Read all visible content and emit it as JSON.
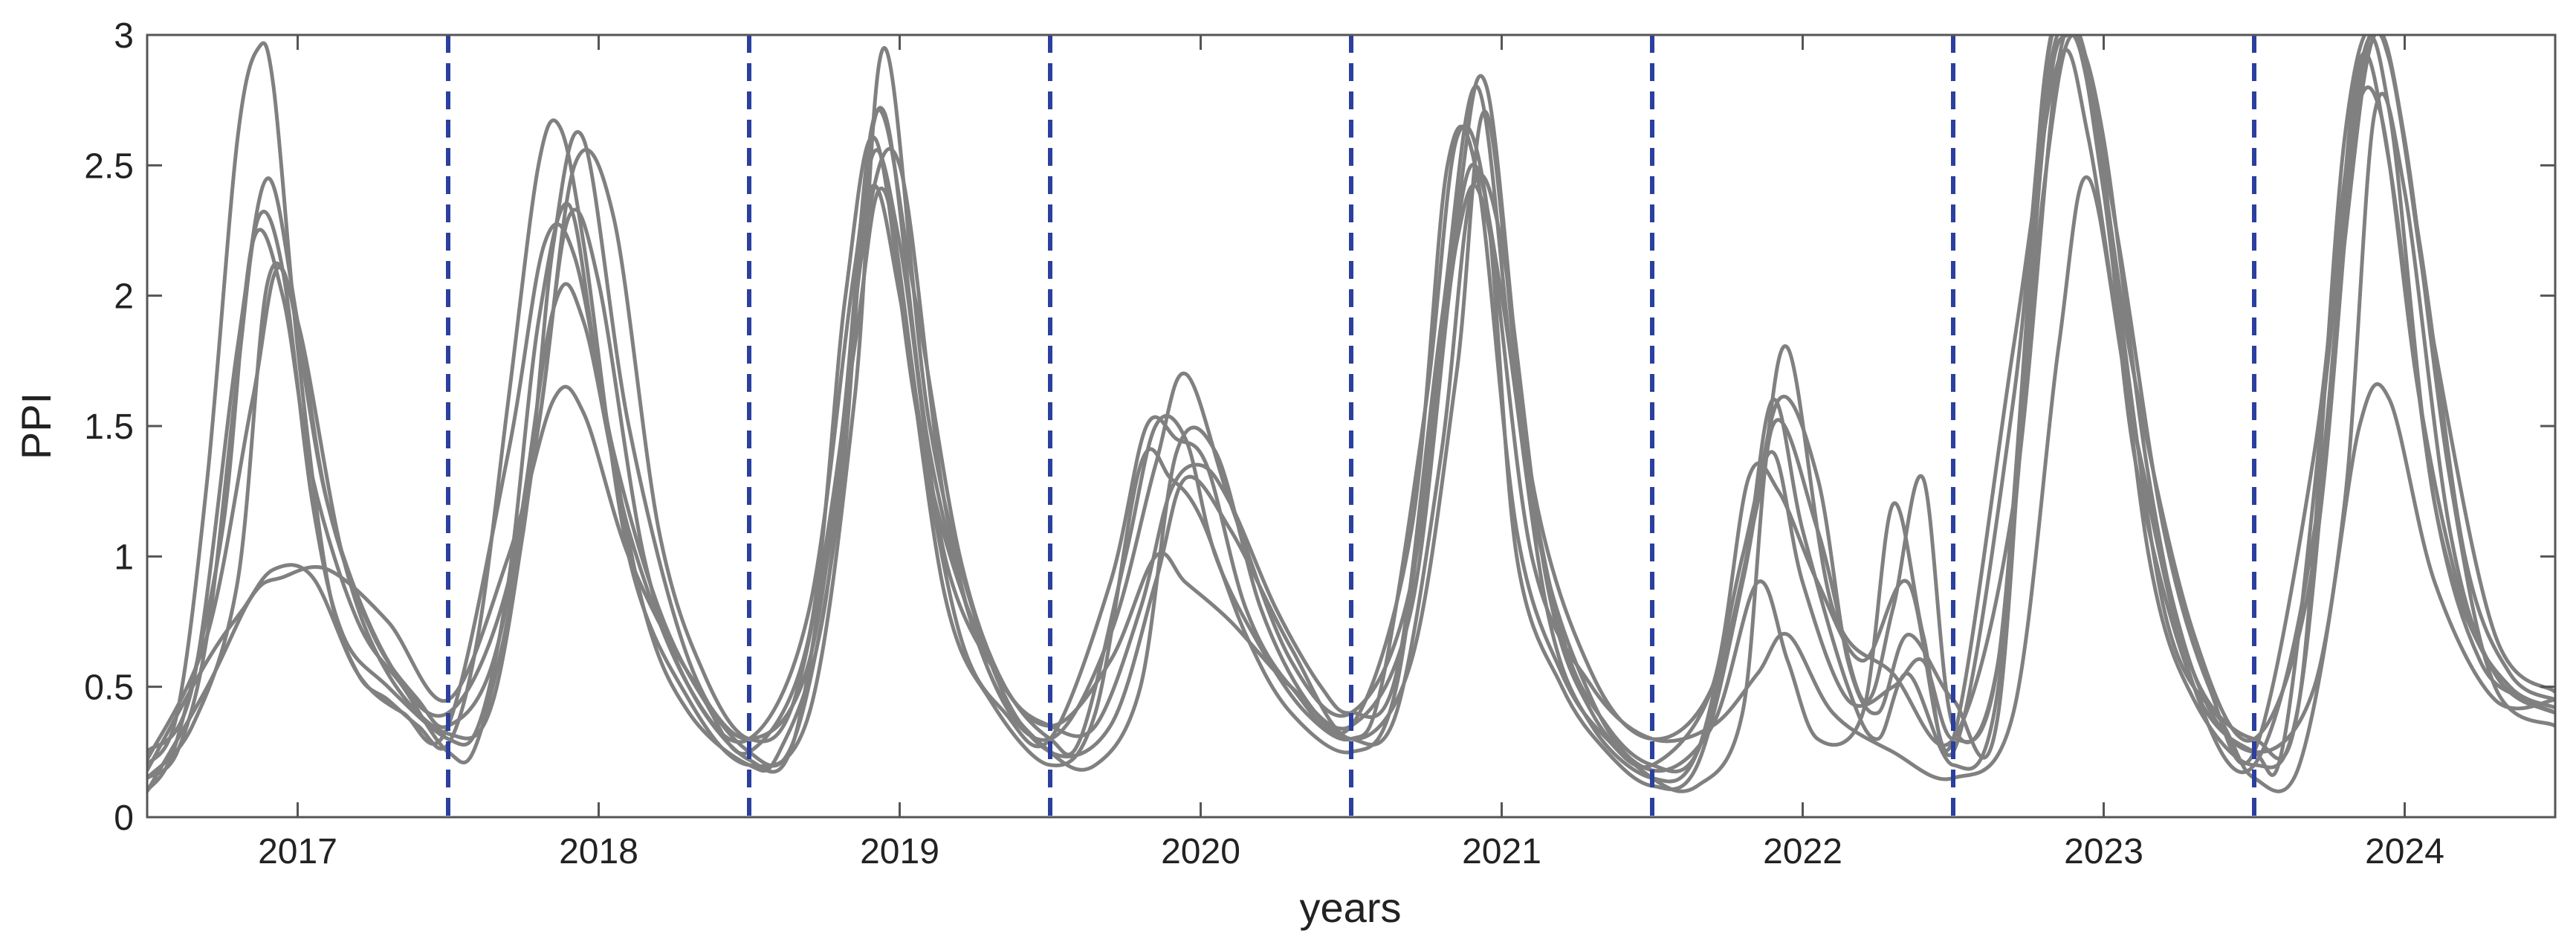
{
  "chart_data": {
    "type": "line",
    "xlabel": "years",
    "ylabel": "PPI",
    "xlim": [
      2016.5,
      2024.5
    ],
    "ylim": [
      0,
      3
    ],
    "x_ticks": [
      2017,
      2018,
      2019,
      2020,
      2021,
      2022,
      2023,
      2024
    ],
    "x_tick_labels": [
      "2017",
      "2018",
      "2019",
      "2020",
      "2021",
      "2022",
      "2023",
      "2024"
    ],
    "y_ticks": [
      0,
      0.5,
      1,
      1.5,
      2,
      2.5,
      3
    ],
    "y_tick_labels": [
      "0",
      "0.5",
      "1",
      "1.5",
      "2",
      "2.5",
      "3"
    ],
    "vertical_lines": [
      2017.5,
      2018.5,
      2019.5,
      2020.5,
      2021.5,
      2022.5,
      2023.5
    ],
    "grid": false,
    "colors": {
      "series": "#808080",
      "vertical_lines": "#2b3f9e",
      "axes": "#555555"
    },
    "series": [
      {
        "x": [
          2016.5,
          2016.6,
          2016.7,
          2016.8,
          2016.87,
          2016.92,
          2017.0,
          2017.1,
          2017.2,
          2017.3,
          2017.4,
          2017.5,
          2017.6,
          2017.7,
          2017.8,
          2017.87,
          2017.95,
          2018.1,
          2018.3,
          2018.5,
          2018.7,
          2018.85,
          2018.95,
          2019.1,
          2019.3,
          2019.5,
          2019.7,
          2019.85,
          2019.95,
          2020.1,
          2020.3,
          2020.5,
          2020.7,
          2020.85,
          2020.95,
          2021.1,
          2021.3,
          2021.5,
          2021.7,
          2021.85,
          2021.95,
          2022.05,
          2022.2,
          2022.3,
          2022.4,
          2022.5,
          2022.7,
          2022.85,
          2022.95,
          2023.1,
          2023.3,
          2023.5,
          2023.7,
          2023.85,
          2023.95,
          2024.1,
          2024.3,
          2024.5
        ],
        "y": [
          0.2,
          0.4,
          1.3,
          2.6,
          2.95,
          2.8,
          1.8,
          0.9,
          0.55,
          0.45,
          0.35,
          0.28,
          0.7,
          1.6,
          2.5,
          2.65,
          2.2,
          1.0,
          0.45,
          0.2,
          0.4,
          1.6,
          2.95,
          1.5,
          0.6,
          0.25,
          0.35,
          0.9,
          1.3,
          1.1,
          0.65,
          0.3,
          0.6,
          1.7,
          2.7,
          1.2,
          0.45,
          0.18,
          0.35,
          0.9,
          0.6,
          0.3,
          0.4,
          1.2,
          0.7,
          0.3,
          1.8,
          2.9,
          2.6,
          1.5,
          0.5,
          0.2,
          1.1,
          2.85,
          2.7,
          1.2,
          0.55,
          0.4
        ]
      },
      {
        "x": [
          2016.5,
          2016.6,
          2016.7,
          2016.8,
          2016.87,
          2016.95,
          2017.05,
          2017.15,
          2017.3,
          2017.5,
          2017.6,
          2017.7,
          2017.8,
          2017.9,
          2018.0,
          2018.15,
          2018.3,
          2018.5,
          2018.6,
          2018.75,
          2018.88,
          2019.0,
          2019.15,
          2019.3,
          2019.5,
          2019.65,
          2019.8,
          2019.92,
          2020.05,
          2020.2,
          2020.35,
          2020.5,
          2020.65,
          2020.8,
          2020.9,
          2021.0,
          2021.15,
          2021.3,
          2021.5,
          2021.65,
          2021.8,
          2021.9,
          2022.05,
          2022.2,
          2022.3,
          2022.4,
          2022.5,
          2022.65,
          2022.8,
          2022.9,
          2023.0,
          2023.2,
          2023.4,
          2023.5,
          2023.65,
          2023.8,
          2023.9,
          2024.0,
          2024.15,
          2024.3,
          2024.5
        ],
        "y": [
          0.15,
          0.25,
          0.7,
          1.7,
          2.3,
          2.1,
          1.2,
          0.7,
          0.5,
          0.3,
          0.35,
          0.9,
          1.9,
          2.35,
          1.7,
          0.8,
          0.4,
          0.2,
          0.25,
          0.8,
          2.2,
          2.5,
          1.2,
          0.55,
          0.25,
          0.2,
          0.5,
          1.4,
          1.4,
          0.8,
          0.45,
          0.3,
          0.4,
          1.4,
          2.4,
          2.2,
          0.9,
          0.4,
          0.15,
          0.12,
          0.4,
          1.5,
          1.1,
          0.45,
          0.8,
          1.3,
          0.35,
          0.6,
          2.4,
          3.0,
          2.4,
          0.8,
          0.35,
          0.15,
          0.2,
          1.2,
          2.7,
          2.4,
          1.1,
          0.55,
          0.4
        ]
      },
      {
        "x": [
          2016.5,
          2016.65,
          2016.8,
          2016.9,
          2017.0,
          2017.1,
          2017.25,
          2017.4,
          2017.5,
          2017.65,
          2017.8,
          2017.92,
          2018.05,
          2018.2,
          2018.35,
          2018.5,
          2018.65,
          2018.8,
          2018.92,
          2019.05,
          2019.2,
          2019.35,
          2019.5,
          2019.65,
          2019.8,
          2019.9,
          2020.0,
          2020.1,
          2020.25,
          2020.4,
          2020.5,
          2020.65,
          2020.8,
          2020.92,
          2021.05,
          2021.2,
          2021.35,
          2021.5,
          2021.65,
          2021.8,
          2021.92,
          2022.05,
          2022.15,
          2022.25,
          2022.35,
          2022.5,
          2022.65,
          2022.8,
          2022.9,
          2023.0,
          2023.15,
          2023.3,
          2023.5,
          2023.65,
          2023.8,
          2023.92,
          2024.05,
          2024.2,
          2024.35,
          2024.5
        ],
        "y": [
          0.25,
          0.5,
          1.8,
          2.45,
          1.9,
          1.2,
          0.7,
          0.45,
          0.35,
          0.6,
          1.5,
          2.5,
          2.3,
          1.1,
          0.55,
          0.3,
          0.45,
          1.4,
          2.7,
          2.0,
          1.0,
          0.5,
          0.35,
          0.35,
          0.8,
          1.25,
          1.35,
          1.2,
          0.8,
          0.5,
          0.4,
          0.55,
          1.9,
          2.8,
          1.6,
          0.7,
          0.35,
          0.2,
          0.25,
          0.9,
          1.6,
          1.3,
          0.6,
          0.4,
          0.7,
          0.45,
          0.4,
          2.8,
          3.0,
          2.6,
          1.3,
          0.55,
          0.3,
          0.45,
          2.6,
          3.0,
          2.2,
          1.0,
          0.55,
          0.45
        ]
      },
      {
        "x": [
          2016.5,
          2016.6,
          2016.75,
          2016.85,
          2016.95,
          2017.05,
          2017.2,
          2017.35,
          2017.5,
          2017.6,
          2017.75,
          2017.85,
          2017.95,
          2018.1,
          2018.3,
          2018.5,
          2018.65,
          2018.8,
          2018.9,
          2019.0,
          2019.15,
          2019.35,
          2019.5,
          2019.6,
          2019.75,
          2019.85,
          2019.95,
          2020.05,
          2020.2,
          2020.35,
          2020.5,
          2020.6,
          2020.75,
          2020.85,
          2020.95,
          2021.05,
          2021.2,
          2021.35,
          2021.5,
          2021.65,
          2021.8,
          2021.9,
          2022.0,
          2022.15,
          2022.25,
          2022.35,
          2022.5,
          2022.65,
          2022.8,
          2022.88,
          2022.98,
          2023.1,
          2023.3,
          2023.5,
          2023.6,
          2023.75,
          2023.85,
          2023.95,
          2024.1,
          2024.25,
          2024.4,
          2024.5
        ],
        "y": [
          0.1,
          0.3,
          1.1,
          2.2,
          2.0,
          1.3,
          0.75,
          0.5,
          0.25,
          0.3,
          1.1,
          2.2,
          2.6,
          1.5,
          0.6,
          0.25,
          0.3,
          1.2,
          2.5,
          2.2,
          1.0,
          0.5,
          0.3,
          0.3,
          1.0,
          1.5,
          1.45,
          1.0,
          0.65,
          0.4,
          0.3,
          0.5,
          1.6,
          2.6,
          2.35,
          1.0,
          0.5,
          0.25,
          0.12,
          0.2,
          0.9,
          1.6,
          1.1,
          0.5,
          0.3,
          0.55,
          0.2,
          0.5,
          2.6,
          3.0,
          2.7,
          1.4,
          0.5,
          0.25,
          0.3,
          1.8,
          2.9,
          2.5,
          1.2,
          0.6,
          0.45,
          0.4
        ]
      },
      {
        "x": [
          2016.5,
          2016.65,
          2016.8,
          2016.9,
          2017.0,
          2017.15,
          2017.3,
          2017.5,
          2017.65,
          2017.8,
          2017.9,
          2018.0,
          2018.15,
          2018.3,
          2018.5,
          2018.65,
          2018.8,
          2018.9,
          2019.0,
          2019.15,
          2019.3,
          2019.5,
          2019.65,
          2019.8,
          2019.9,
          2020.0,
          2020.15,
          2020.3,
          2020.5,
          2020.65,
          2020.8,
          2020.9,
          2021.0,
          2021.15,
          2021.3,
          2021.5,
          2021.65,
          2021.8,
          2021.9,
          2022.0,
          2022.15,
          2022.3,
          2022.4,
          2022.5,
          2022.65,
          2022.8,
          2022.9,
          2023.0,
          2023.15,
          2023.3,
          2023.5,
          2023.65,
          2023.8,
          2023.9,
          2024.0,
          2024.15,
          2024.3,
          2024.5
        ],
        "y": [
          0.15,
          0.35,
          0.9,
          2.05,
          1.9,
          1.0,
          0.55,
          0.32,
          0.45,
          1.5,
          2.3,
          2.05,
          1.0,
          0.5,
          0.22,
          0.3,
          1.4,
          2.4,
          2.0,
          0.85,
          0.45,
          0.2,
          0.4,
          1.35,
          1.3,
          1.15,
          0.7,
          0.4,
          0.25,
          0.5,
          1.8,
          2.5,
          2.0,
          0.8,
          0.35,
          0.15,
          0.25,
          1.0,
          1.4,
          0.9,
          0.45,
          0.5,
          0.6,
          0.3,
          0.6,
          2.7,
          3.0,
          2.4,
          1.0,
          0.45,
          0.2,
          0.45,
          2.2,
          3.0,
          2.6,
          1.3,
          0.5,
          0.35
        ]
      },
      {
        "x": [
          2016.5,
          2016.7,
          2016.85,
          2016.95,
          2017.1,
          2017.3,
          2017.5,
          2017.7,
          2017.85,
          2017.95,
          2018.1,
          2018.3,
          2018.5,
          2018.7,
          2018.85,
          2018.95,
          2019.1,
          2019.3,
          2019.5,
          2019.7,
          2019.85,
          2019.95,
          2020.1,
          2020.3,
          2020.5,
          2020.7,
          2020.85,
          2020.95,
          2021.1,
          2021.3,
          2021.5,
          2021.7,
          2021.85,
          2021.95,
          2022.1,
          2022.3,
          2022.5,
          2022.7,
          2022.85,
          2022.95,
          2023.1,
          2023.3,
          2023.5,
          2023.7,
          2023.85,
          2023.95,
          2024.1,
          2024.3,
          2024.5
        ],
        "y": [
          0.1,
          0.5,
          0.85,
          0.92,
          0.95,
          0.75,
          0.45,
          1.0,
          1.6,
          1.55,
          1.0,
          0.55,
          0.3,
          0.6,
          1.8,
          2.4,
          1.3,
          0.6,
          0.35,
          0.6,
          1.0,
          0.9,
          0.75,
          0.5,
          0.35,
          0.8,
          2.2,
          2.3,
          1.0,
          0.5,
          0.3,
          0.35,
          0.55,
          0.7,
          0.4,
          0.25,
          0.15,
          0.4,
          1.8,
          2.45,
          1.5,
          0.55,
          0.25,
          0.5,
          1.5,
          1.6,
          0.9,
          0.45,
          0.45
        ]
      },
      {
        "x": [
          2016.5,
          2016.7,
          2016.82,
          2016.92,
          2017.05,
          2017.2,
          2017.35,
          2017.5,
          2017.7,
          2017.82,
          2017.92,
          2018.05,
          2018.2,
          2018.35,
          2018.5,
          2018.7,
          2018.82,
          2018.92,
          2019.05,
          2019.2,
          2019.35,
          2019.5,
          2019.7,
          2019.82,
          2019.92,
          2020.02,
          2020.15,
          2020.3,
          2020.5,
          2020.7,
          2020.82,
          2020.92,
          2021.05,
          2021.2,
          2021.35,
          2021.5,
          2021.7,
          2021.82,
          2021.92,
          2022.05,
          2022.2,
          2022.35,
          2022.5,
          2022.7,
          2022.82,
          2022.92,
          2023.05,
          2023.2,
          2023.35,
          2023.5,
          2023.7,
          2023.82,
          2023.92,
          2024.05,
          2024.2,
          2024.35,
          2024.5
        ],
        "y": [
          0.18,
          0.6,
          0.8,
          0.95,
          0.92,
          0.55,
          0.4,
          0.35,
          1.4,
          2.2,
          2.15,
          1.4,
          0.8,
          0.45,
          0.25,
          0.7,
          2.0,
          2.6,
          1.6,
          0.7,
          0.4,
          0.3,
          0.9,
          1.5,
          1.45,
          1.35,
          0.8,
          0.5,
          0.35,
          1.1,
          2.5,
          2.45,
          1.1,
          0.55,
          0.3,
          0.2,
          0.5,
          1.3,
          1.25,
          0.9,
          0.6,
          0.9,
          0.25,
          1.6,
          2.95,
          3.0,
          2.2,
          1.1,
          0.5,
          0.25,
          1.4,
          2.6,
          2.7,
          1.6,
          0.8,
          0.5,
          0.42
        ]
      },
      {
        "x": [
          2016.5,
          2016.7,
          2016.85,
          2016.95,
          2017.1,
          2017.3,
          2017.5,
          2017.7,
          2017.85,
          2017.95,
          2018.1,
          2018.3,
          2018.5,
          2018.7,
          2018.85,
          2018.95,
          2019.1,
          2019.3,
          2019.5,
          2019.7,
          2019.85,
          2019.95,
          2020.1,
          2020.3,
          2020.5,
          2020.7,
          2020.85,
          2020.95,
          2021.1,
          2021.3,
          2021.5,
          2021.7,
          2021.85,
          2021.95,
          2022.1,
          2022.3,
          2022.5,
          2022.7,
          2022.85,
          2022.95,
          2023.1,
          2023.3,
          2023.5,
          2023.7,
          2023.85,
          2023.95,
          2024.1,
          2024.3,
          2024.5
        ],
        "y": [
          0.22,
          0.7,
          1.6,
          2.1,
          1.2,
          0.6,
          0.4,
          0.9,
          1.95,
          1.9,
          1.1,
          0.5,
          0.3,
          0.8,
          2.1,
          2.7,
          1.4,
          0.55,
          0.3,
          0.7,
          1.35,
          1.7,
          1.2,
          0.6,
          0.4,
          0.9,
          2.3,
          2.8,
          1.3,
          0.55,
          0.3,
          0.5,
          1.2,
          1.8,
          0.8,
          0.55,
          0.3,
          1.2,
          2.9,
          2.8,
          1.7,
          0.7,
          0.3,
          1.0,
          2.8,
          2.9,
          1.8,
          0.7,
          0.48
        ]
      }
    ]
  }
}
